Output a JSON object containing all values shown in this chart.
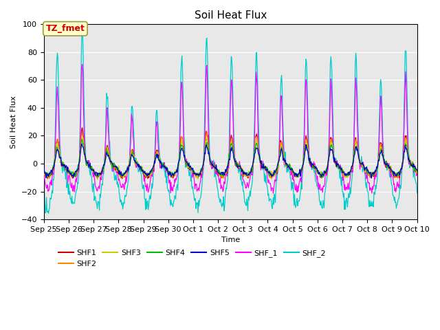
{
  "title": "Soil Heat Flux",
  "xlabel": "Time",
  "ylabel": "Soil Heat Flux",
  "ylim": [
    -40,
    100
  ],
  "n_days": 15,
  "colors": {
    "SHF1": "#cc0000",
    "SHF2": "#ff8800",
    "SHF3": "#cccc00",
    "SHF4": "#00bb00",
    "SHF5": "#0000cc",
    "SHF_1": "#ff00ff",
    "SHF_2": "#00cccc"
  },
  "annotation_text": "TZ_fmet",
  "annotation_color": "#cc0000",
  "annotation_bg": "#ffffcc",
  "annotation_border": "#999944",
  "background_gray": "#e8e8e8",
  "background_white": "#ffffff",
  "tick_labels": [
    "Sep 25",
    "Sep 26",
    "Sep 27",
    "Sep 28",
    "Sep 29",
    "Sep 30",
    "Oct 1",
    "Oct 2",
    "Oct 3",
    "Oct 4",
    "Oct 5",
    "Oct 6",
    "Oct 7",
    "Oct 8",
    "Oct 9",
    "Oct 10"
  ],
  "yticks": [
    -40,
    -20,
    0,
    20,
    40,
    60,
    80,
    100
  ],
  "title_fontsize": 11,
  "axis_fontsize": 8,
  "legend_fontsize": 8
}
